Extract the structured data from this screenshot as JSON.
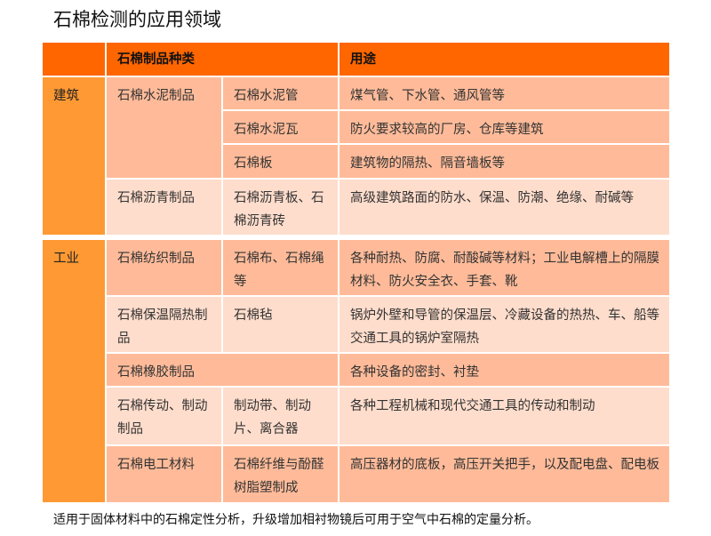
{
  "title": "石棉检测的应用领域",
  "header": {
    "kind": "石棉制品种类",
    "use": "用途"
  },
  "building": {
    "category": "建筑",
    "g1": {
      "name": "石棉水泥制品",
      "items": [
        {
          "name": "石棉水泥管",
          "use": "煤气管、下水管、通风管等"
        },
        {
          "name": "石棉水泥瓦",
          "use": "防火要求较高的厂房、仓库等建筑"
        },
        {
          "name": "石棉板",
          "use": "建筑物的隔热、隔音墙板等"
        }
      ]
    },
    "g2": {
      "name": "石棉沥青制品",
      "item": "石棉沥青板、石棉沥青砖",
      "use": "高级建筑路面的防水、保温、防潮、绝缘、耐碱等"
    }
  },
  "industry": {
    "category": "工业",
    "rows": [
      {
        "name": "石棉纺织制品",
        "item": "石棉布、石棉绳等",
        "use": "各种耐热、防腐、耐酸碱等材料；工业电解槽上的隔膜材料、防火安全衣、手套、靴"
      },
      {
        "name": "石棉保温隔热制品",
        "item": "石棉毡",
        "use": "锅炉外壁和导管的保温层、冷藏设备的热热、车、船等交通工具的锅炉室隔热"
      },
      {
        "name": "石棉橡胶制品",
        "use": "各种设备的密封、衬垫"
      },
      {
        "name": "石棉传动、制动制品",
        "item": "制动带、制动片、离合器",
        "use": "各种工程机械和现代交通工具的传动和制动"
      },
      {
        "name": "石棉电工材料",
        "item": "石棉纤维与酚醛树脂塑制成",
        "use": "高压器材的底板，高压开关把手，以及配电盘、配电板"
      }
    ]
  },
  "footnote": "适用于固体材料中的石棉定性分析，升级增加相衬物镜后可用于空气中石棉的定量分析。",
  "colors": {
    "header": "#ff6600",
    "category": "#ff9933",
    "dark": "#ffbb99",
    "light": "#ffddcc"
  }
}
